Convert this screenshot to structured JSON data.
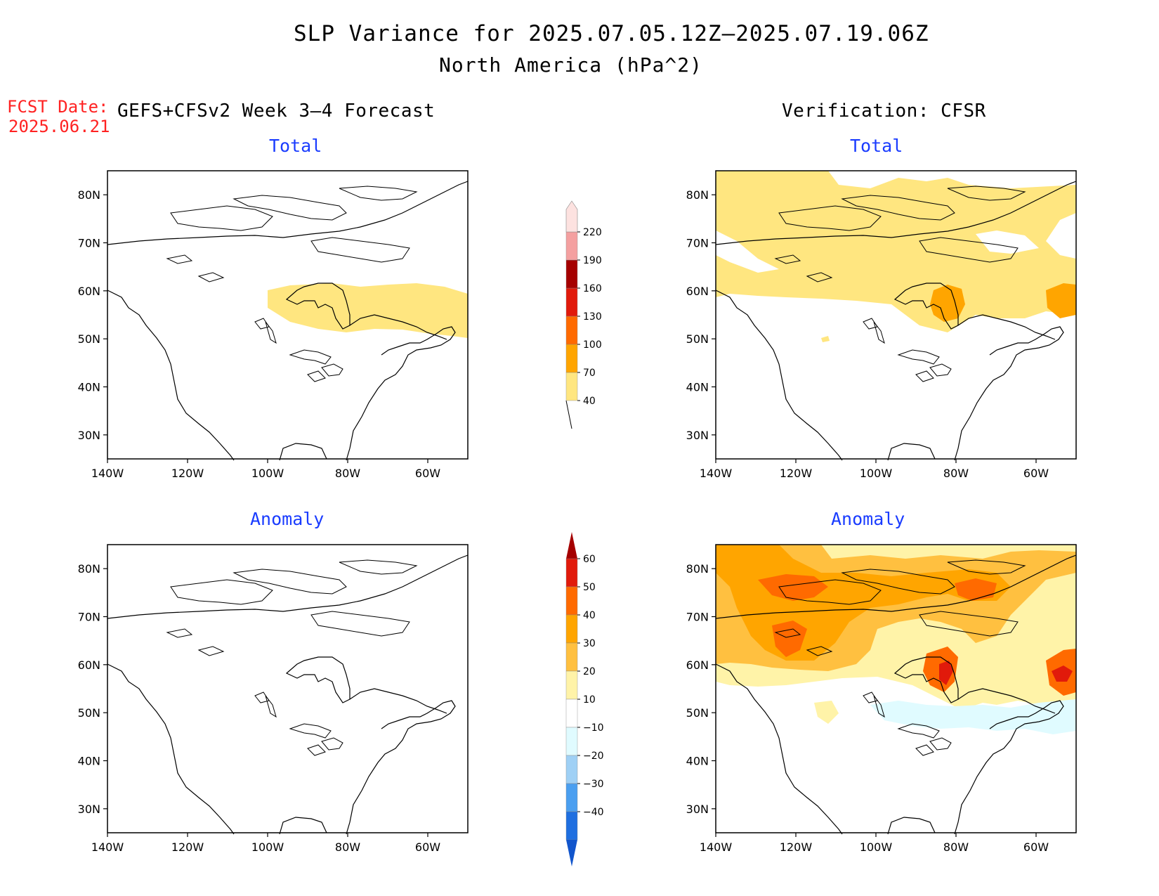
{
  "header": {
    "title": "SLP Variance for 2025.07.05.12Z–2025.07.19.06Z",
    "subtitle": "North America (hPa^2)"
  },
  "fcst": {
    "label": "FCST Date:",
    "date": "2025.06.21"
  },
  "columns": {
    "left_heading": "GEFS+CFSv2 Week 3–4 Forecast",
    "right_heading": "Verification: CFSR"
  },
  "panels": {
    "forecast_total": {
      "title": "Total"
    },
    "verif_total": {
      "title": "Total"
    },
    "forecast_anomaly": {
      "title": "Anomaly"
    },
    "verif_anomaly": {
      "title": "Anomaly"
    }
  },
  "axes": {
    "lat_labels": [
      "80N",
      "70N",
      "60N",
      "50N",
      "40N",
      "30N"
    ],
    "lat_values": [
      80,
      70,
      60,
      50,
      40,
      30
    ],
    "lon_labels": [
      "140W",
      "120W",
      "100W",
      "80W",
      "60W"
    ],
    "lon_values": [
      -140,
      -120,
      -100,
      -80,
      -60
    ],
    "lat_range": [
      25,
      85
    ],
    "lon_range": [
      -140,
      -50
    ]
  },
  "colorbars": {
    "total": {
      "levels": [
        "40",
        "70",
        "100",
        "130",
        "160",
        "190",
        "220"
      ],
      "colors": [
        "#ffe680",
        "#ffa500",
        "#ff6a00",
        "#e11a0b",
        "#a50000",
        "#f4a0a0",
        "#fde2e0"
      ]
    },
    "anomaly": {
      "levels": [
        "60",
        "50",
        "40",
        "30",
        "20",
        "10",
        "−10",
        "−20",
        "−30",
        "−40"
      ],
      "colors_top_down": [
        "#a50000",
        "#e11a0b",
        "#ff6a00",
        "#ffa500",
        "#ffc040",
        "#fff3a8",
        "#ffffff",
        "#e0fbff",
        "#9fd0f5",
        "#4a9ff0",
        "#1f6fe0",
        "#1155cc"
      ]
    }
  },
  "colors": {
    "fcst_label": "#ff2222",
    "panel_title": "#1a3cff"
  }
}
